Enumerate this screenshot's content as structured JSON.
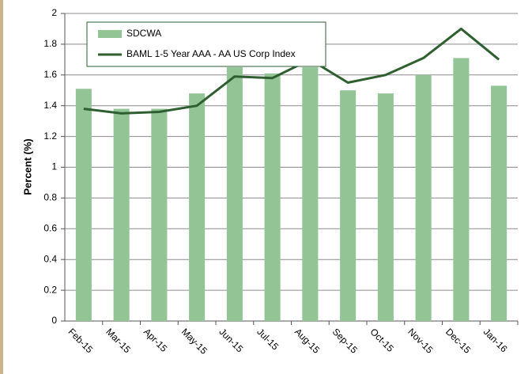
{
  "chart_data": {
    "type": "bar",
    "y_label": "Percent (%)",
    "categories": [
      "Feb-15",
      "Mar-15",
      "Apr-15",
      "May-15",
      "Jun-15",
      "Jul-15",
      "Aug-15",
      "Sep-15",
      "Oct-15",
      "Nov-15",
      "Dec-15",
      "Jan-16"
    ],
    "series": [
      {
        "name": "SDCWA",
        "type": "bar",
        "color": "#93c496",
        "values": [
          1.51,
          1.38,
          1.38,
          1.48,
          1.65,
          1.61,
          1.65,
          1.5,
          1.48,
          1.6,
          1.71,
          1.53
        ]
      },
      {
        "name": "BAML 1-5 Year AAA - AA US Corp Index",
        "type": "line",
        "color": "#2f5f30",
        "values": [
          1.38,
          1.35,
          1.36,
          1.4,
          1.59,
          1.58,
          1.7,
          1.55,
          1.6,
          1.71,
          1.9,
          1.7
        ]
      }
    ],
    "ylim": [
      0,
      2
    ],
    "yticks": [
      0,
      0.2,
      0.4,
      0.6,
      0.8,
      1,
      1.2,
      1.4,
      1.6,
      1.8,
      2
    ],
    "grid": true,
    "legend": "top-left"
  }
}
